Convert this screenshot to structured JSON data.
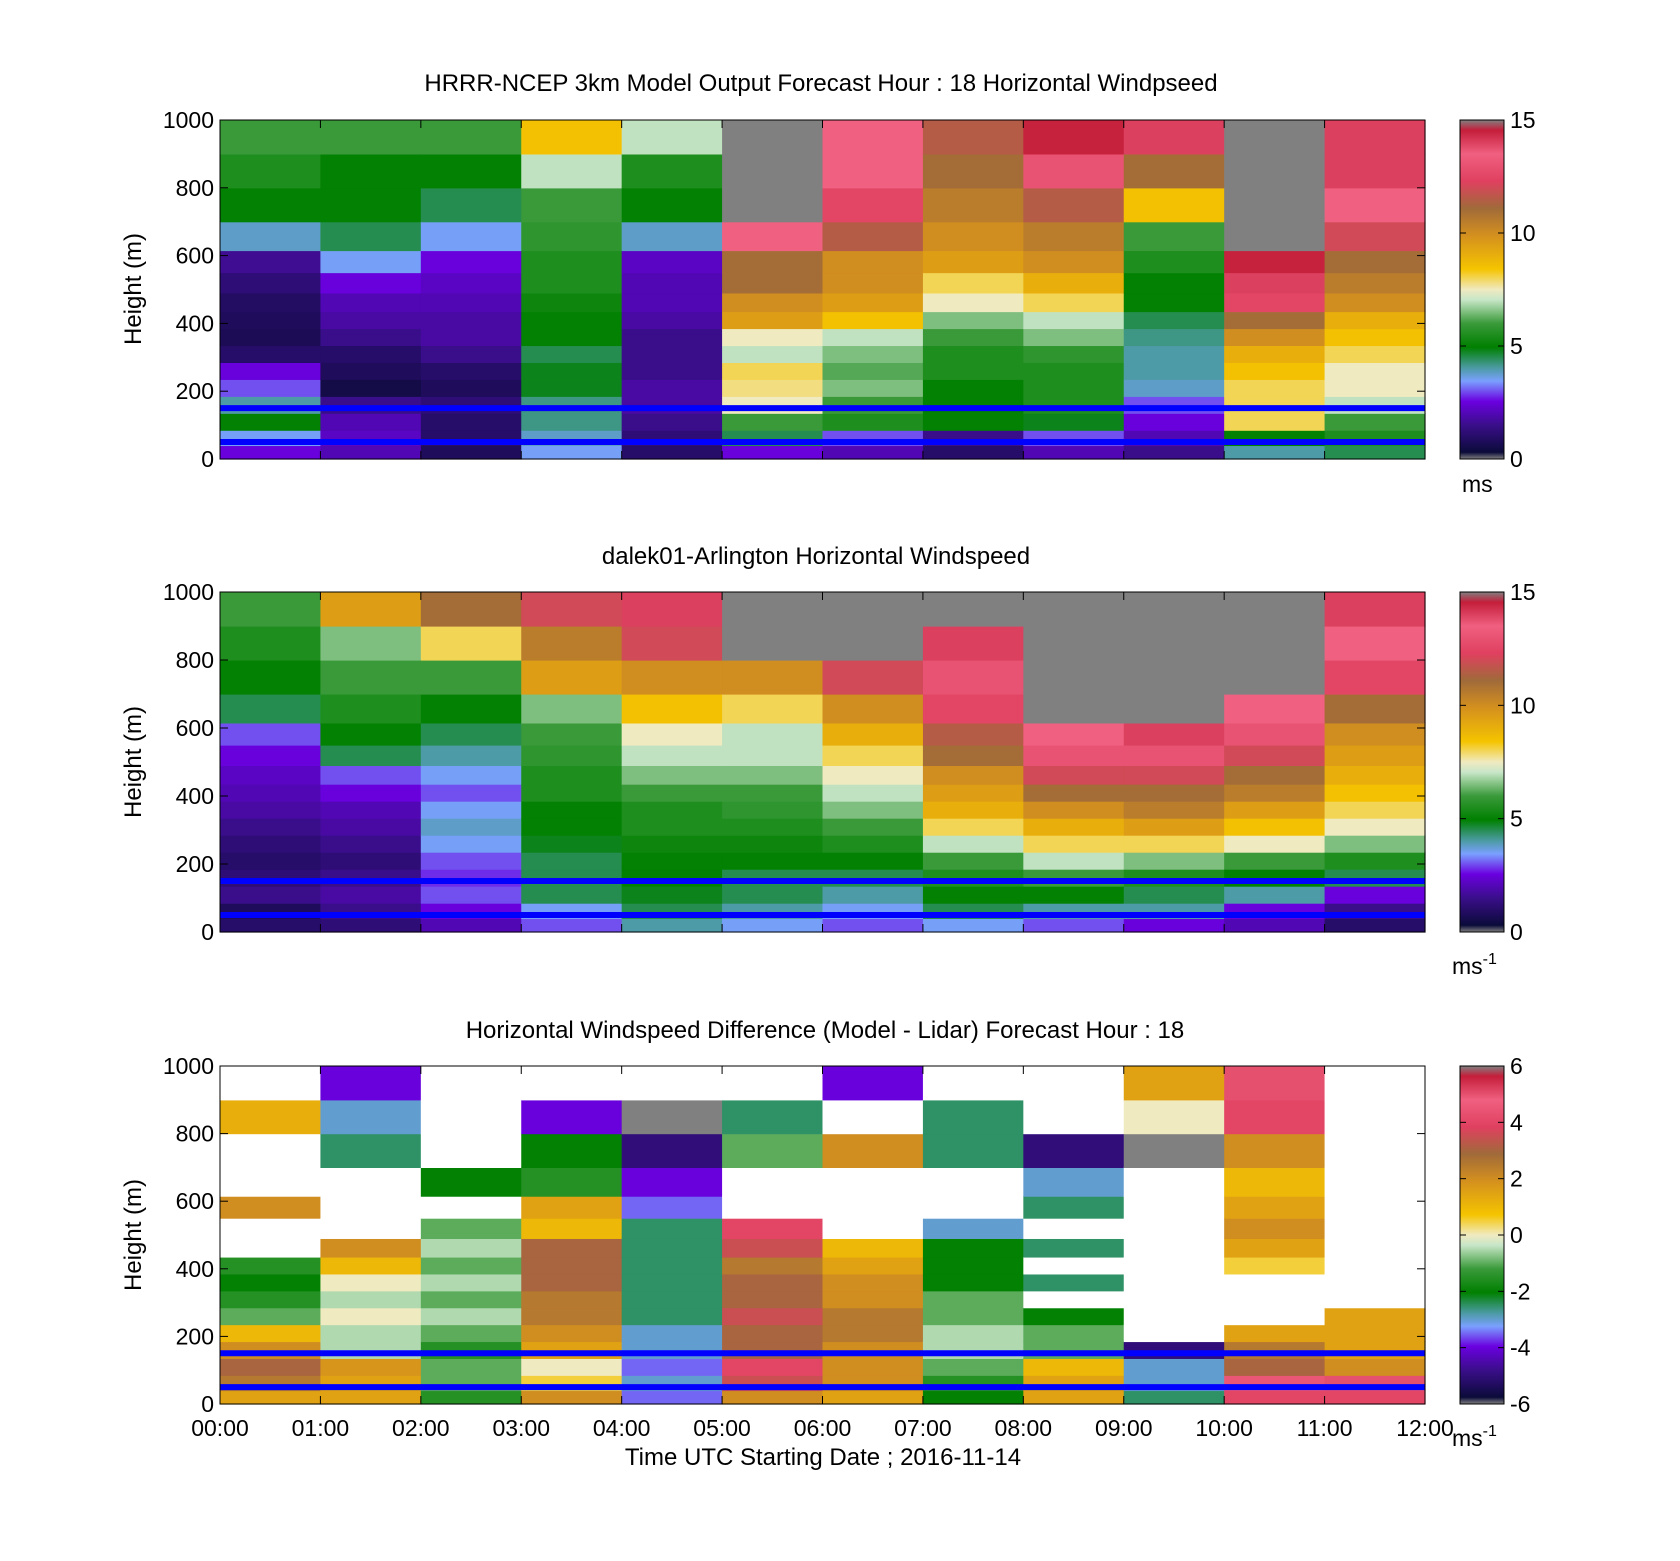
{
  "chart_data": [
    {
      "type": "heatmap",
      "title": "HRRR-NCEP 3km Model Output   Forecast Hour : 18 Horizontal Windpseed",
      "ylabel": "Height (m)",
      "ylim": [
        0,
        1000
      ],
      "yticks": [
        "0",
        "200",
        "400",
        "600",
        "800",
        "1000"
      ],
      "colorbar": {
        "vmin": 0,
        "vmax": 15,
        "ticks": [
          "0",
          "5",
          "10",
          "15"
        ],
        "unit": "ms",
        "unit_sup": ""
      },
      "x": [
        "00:00",
        "01:00",
        "02:00",
        "03:00",
        "04:00",
        "05:00",
        "06:00",
        "07:00",
        "08:00",
        "09:00",
        "10:00",
        "11:00"
      ],
      "heights": [
        20,
        60,
        110,
        160,
        210,
        260,
        310,
        360,
        410,
        460,
        520,
        580,
        650,
        750,
        850,
        950
      ],
      "values": [
        [
          2.5,
          3.5,
          5,
          4.0,
          3.0,
          2.5,
          1.0,
          0.7,
          0.8,
          0.9,
          1.2,
          1.6,
          3.8,
          5.0,
          5.5,
          6.0
        ],
        [
          2.0,
          2.2,
          2.0,
          1.5,
          0.5,
          0.8,
          1.0,
          1.5,
          1.8,
          2.0,
          2.5,
          3.5,
          4.5,
          5.0,
          5.0,
          6.0
        ],
        [
          0.8,
          1.0,
          1.0,
          1.2,
          0.8,
          1.0,
          1.5,
          1.8,
          1.8,
          2.0,
          2.2,
          2.5,
          3.5,
          4.5,
          5.0,
          6.0
        ],
        [
          3.5,
          3.8,
          4.2,
          4.2,
          4.8,
          4.8,
          4.5,
          5.0,
          5.0,
          5.2,
          5.5,
          5.5,
          5.8,
          6.0,
          7.0,
          8.5
        ],
        [
          1.0,
          1.2,
          1.5,
          1.8,
          1.8,
          1.5,
          1.5,
          1.5,
          1.8,
          2.0,
          2.0,
          2.2,
          3.8,
          5.0,
          5.5,
          7.0
        ],
        [
          2.5,
          4.5,
          6.0,
          7.5,
          7.8,
          8.0,
          7.0,
          7.5,
          9.5,
          10.0,
          11.0,
          11.0,
          13.5,
          15.5,
          15.5,
          15.5
        ],
        [
          2.0,
          3.0,
          5.5,
          6.0,
          6.5,
          6.2,
          6.5,
          7.0,
          8.5,
          9.5,
          10.0,
          10.0,
          11.5,
          12.5,
          13.5,
          13.5
        ],
        [
          1.0,
          1.5,
          5.0,
          5.0,
          5.0,
          5.5,
          5.5,
          6.0,
          6.5,
          7.5,
          8.0,
          9.5,
          10.0,
          10.5,
          11.0,
          11.5
        ],
        [
          2.0,
          3.0,
          4.8,
          5.5,
          5.5,
          5.5,
          5.8,
          6.5,
          7.0,
          8.0,
          9.0,
          10.0,
          10.5,
          11.5,
          13.0,
          14.5
        ],
        [
          1.5,
          2.0,
          2.5,
          3.0,
          3.8,
          4.0,
          4.0,
          4.2,
          4.5,
          5.0,
          5.0,
          5.5,
          6.0,
          8.5,
          11.0,
          14.0
        ],
        [
          4.0,
          5.0,
          8.0,
          8.0,
          8.0,
          8.5,
          9.0,
          10.0,
          11.0,
          12.5,
          14.0,
          14.5,
          15.5,
          15.5,
          15.5,
          15.5
        ],
        [
          4.5,
          5.5,
          6.0,
          7.0,
          7.5,
          7.5,
          8.0,
          8.5,
          9.0,
          10.0,
          10.5,
          11.0,
          12.0,
          13.5,
          14.0,
          14.0
        ]
      ],
      "missing_color": "#808080",
      "overlay_lines_m": [
        50,
        150
      ],
      "overlay_color": "#0000ff"
    },
    {
      "type": "heatmap",
      "title": "dalek01-Arlington  Horizontal Windspeed",
      "ylabel": "Height (m)",
      "ylim": [
        0,
        1000
      ],
      "yticks": [
        "0",
        "200",
        "400",
        "600",
        "800",
        "1000"
      ],
      "colorbar": {
        "vmin": 0,
        "vmax": 15,
        "ticks": [
          "0",
          "5",
          "10",
          "15"
        ],
        "unit": "ms",
        "unit_sup": "-1"
      },
      "x": [
        "00:00",
        "01:00",
        "02:00",
        "03:00",
        "04:00",
        "05:00",
        "06:00",
        "07:00",
        "08:00",
        "09:00",
        "10:00",
        "11:00"
      ],
      "heights": [
        20,
        60,
        110,
        160,
        210,
        260,
        310,
        360,
        410,
        460,
        520,
        580,
        650,
        750,
        850,
        950
      ],
      "values": [
        [
          1.0,
          0.8,
          1.5,
          1.2,
          1.0,
          1.2,
          1.5,
          1.8,
          2.0,
          2.2,
          2.5,
          3.0,
          4.5,
          5.0,
          5.5,
          6.0
        ],
        [
          1.2,
          1.5,
          1.8,
          1.5,
          1.2,
          1.5,
          1.8,
          2.0,
          2.5,
          3.0,
          4.5,
          5.0,
          5.5,
          6.0,
          6.5,
          9.5
        ],
        [
          2.0,
          2.5,
          3.0,
          2.8,
          3.0,
          3.5,
          3.8,
          3.5,
          3.0,
          3.5,
          4.0,
          4.5,
          5.0,
          6.0,
          8.0,
          11.0
        ],
        [
          3.0,
          3.5,
          4.5,
          4.5,
          4.5,
          4.8,
          5.0,
          5.0,
          5.5,
          5.5,
          5.8,
          6.0,
          6.5,
          9.5,
          10.5,
          12.0
        ],
        [
          4.0,
          4.5,
          4.8,
          5.0,
          5.0,
          5.2,
          5.5,
          5.5,
          6.0,
          6.5,
          7.0,
          7.5,
          8.5,
          10.0,
          12.0,
          14.0
        ],
        [
          3.5,
          4.0,
          4.5,
          4.5,
          5.0,
          5.2,
          5.5,
          5.8,
          6.0,
          6.5,
          7.0,
          7.0,
          8.0,
          10.0,
          16.0,
          16.0
        ],
        [
          3.0,
          3.5,
          4.0,
          4.5,
          5.0,
          5.5,
          6.0,
          6.5,
          7.0,
          7.5,
          8.0,
          9.0,
          10.0,
          12.0,
          16.0,
          16.0
        ],
        [
          3.5,
          4.5,
          5.0,
          5.5,
          6.0,
          7.0,
          8.0,
          9.0,
          9.5,
          10.0,
          11.0,
          11.5,
          12.5,
          13.0,
          14.0,
          16.0
        ],
        [
          3.0,
          4.0,
          5.0,
          6.0,
          7.0,
          8.0,
          9.0,
          10.0,
          11.0,
          12.0,
          13.0,
          13.5,
          16.0,
          16.0,
          16.0,
          16.0
        ],
        [
          2.5,
          4.0,
          4.5,
          5.5,
          6.5,
          8.0,
          9.5,
          10.5,
          11.0,
          12.0,
          13.0,
          14.0,
          16.0,
          16.0,
          16.0,
          16.0
        ],
        [
          2.0,
          2.5,
          4.0,
          5.0,
          6.0,
          7.5,
          8.5,
          9.5,
          10.5,
          11.0,
          12.0,
          13.0,
          13.5,
          16.0,
          16.0,
          15.5
        ],
        [
          1.0,
          1.5,
          2.5,
          4.5,
          5.5,
          6.5,
          7.5,
          8.0,
          8.5,
          9.0,
          9.5,
          10.0,
          11.0,
          12.5,
          13.5,
          14.0
        ]
      ],
      "missing_color": "#808080",
      "overlay_lines_m": [
        50,
        150
      ],
      "overlay_color": "#0000ff"
    },
    {
      "type": "heatmap",
      "title": "Horizontal Windspeed Difference (Model - Lidar) Forecast Hour : 18",
      "ylabel": "Height (m)",
      "xlabel": "Time UTC  Starting Date ; 2016-11-14",
      "ylim": [
        0,
        1000
      ],
      "yticks": [
        "0",
        "200",
        "400",
        "600",
        "800",
        "1000"
      ],
      "xticks": [
        "00:00",
        "01:00",
        "02:00",
        "03:00",
        "04:00",
        "05:00",
        "06:00",
        "07:00",
        "08:00",
        "09:00",
        "10:00",
        "11:00",
        "12:00"
      ],
      "colorbar": {
        "vmin": -6,
        "vmax": 6,
        "ticks": [
          "-6",
          "-4",
          "-2",
          "0",
          "2",
          "4",
          "6"
        ],
        "unit": "ms",
        "unit_sup": "-1"
      },
      "x": [
        "00:00",
        "01:00",
        "02:00",
        "03:00",
        "04:00",
        "05:00",
        "06:00",
        "07:00",
        "08:00",
        "09:00",
        "10:00",
        "11:00"
      ],
      "heights": [
        20,
        60,
        110,
        160,
        210,
        260,
        310,
        360,
        410,
        460,
        520,
        580,
        650,
        750,
        850,
        950
      ],
      "values": [
        [
          1.5,
          2.5,
          3.0,
          2.0,
          1.0,
          -1.0,
          -1.5,
          -2.0,
          -1.5,
          null,
          null,
          2.0,
          null,
          null,
          1.2,
          null
        ],
        [
          1.5,
          1.5,
          1.8,
          -0.5,
          -0.5,
          0.0,
          -0.5,
          0.0,
          1.0,
          2.0,
          null,
          null,
          null,
          -2.5,
          -3.0,
          -4.0
        ],
        [
          -1.5,
          -1.0,
          -1.0,
          -1.5,
          -1.0,
          -0.5,
          -1.0,
          -0.5,
          -1.0,
          -0.5,
          -1.0,
          null,
          -2.0,
          null,
          null,
          null
        ],
        [
          2.0,
          0.5,
          0.0,
          1.5,
          2.0,
          2.5,
          2.5,
          3.0,
          3.0,
          3.0,
          1.0,
          1.5,
          -1.5,
          -2.0,
          -4.0,
          null
        ],
        [
          -3.5,
          -3.0,
          -3.5,
          -3.0,
          -3.0,
          -2.5,
          -2.5,
          -2.5,
          -2.5,
          -2.5,
          -2.5,
          -3.5,
          -4.0,
          -5.0,
          -6.0,
          null
        ],
        [
          2.0,
          3.5,
          4.0,
          3.0,
          3.0,
          3.5,
          3.0,
          3.0,
          2.5,
          3.5,
          4.0,
          null,
          null,
          -1.0,
          -2.5,
          null
        ],
        [
          1.5,
          2.0,
          2.0,
          2.0,
          2.5,
          2.5,
          2.0,
          2.0,
          1.5,
          1.0,
          null,
          null,
          null,
          2.0,
          null,
          -4.0
        ],
        [
          -2.0,
          -1.5,
          -1.0,
          -0.5,
          -0.5,
          -1.0,
          -1.0,
          -2.0,
          -2.0,
          -2.0,
          -3.0,
          null,
          null,
          -2.5,
          -2.5,
          null
        ],
        [
          1.5,
          1.5,
          1.0,
          -1.0,
          -1.0,
          -2.0,
          null,
          -2.5,
          null,
          -2.5,
          null,
          -2.5,
          -3.0,
          -5.0,
          null,
          null
        ],
        [
          -2.5,
          -3.0,
          -3.0,
          -5.0,
          null,
          null,
          null,
          null,
          null,
          null,
          null,
          null,
          null,
          -6.5,
          0.0,
          1.5
        ],
        [
          4.0,
          4.5,
          3.0,
          2.5,
          1.5,
          null,
          null,
          null,
          0.5,
          1.5,
          2.0,
          1.5,
          1.0,
          2.0,
          4.0,
          5.0
        ],
        [
          4.0,
          5.0,
          2.0,
          1.5,
          1.5,
          1.5,
          null,
          null,
          null,
          null,
          null,
          null,
          null,
          null,
          null,
          null
        ]
      ],
      "missing_color": "#808080",
      "overlay_lines_m": [
        50,
        150
      ],
      "overlay_color": "#0000ff"
    }
  ]
}
